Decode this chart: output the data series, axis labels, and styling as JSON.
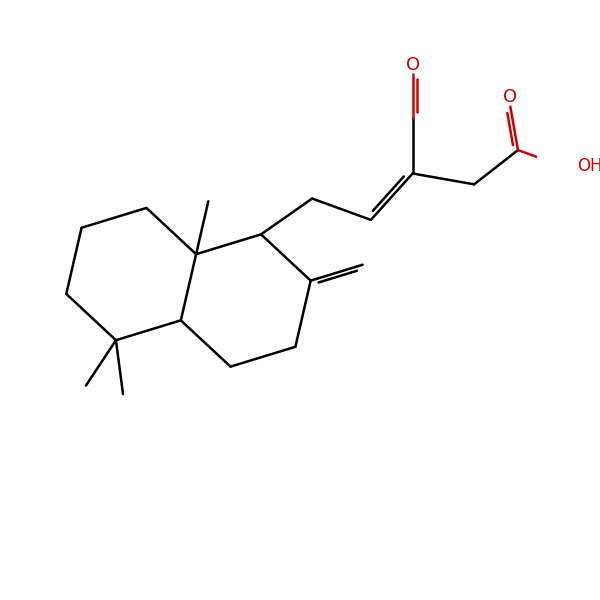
{
  "bg_color": "#ffffff",
  "line_color": "#000000",
  "red_color": "#cc0000",
  "line_width": 1.8,
  "figsize": [
    6.0,
    6.0
  ],
  "dpi": 100,
  "xlim": [
    -1.0,
    9.5
  ],
  "ylim": [
    -1.5,
    8.5
  ]
}
